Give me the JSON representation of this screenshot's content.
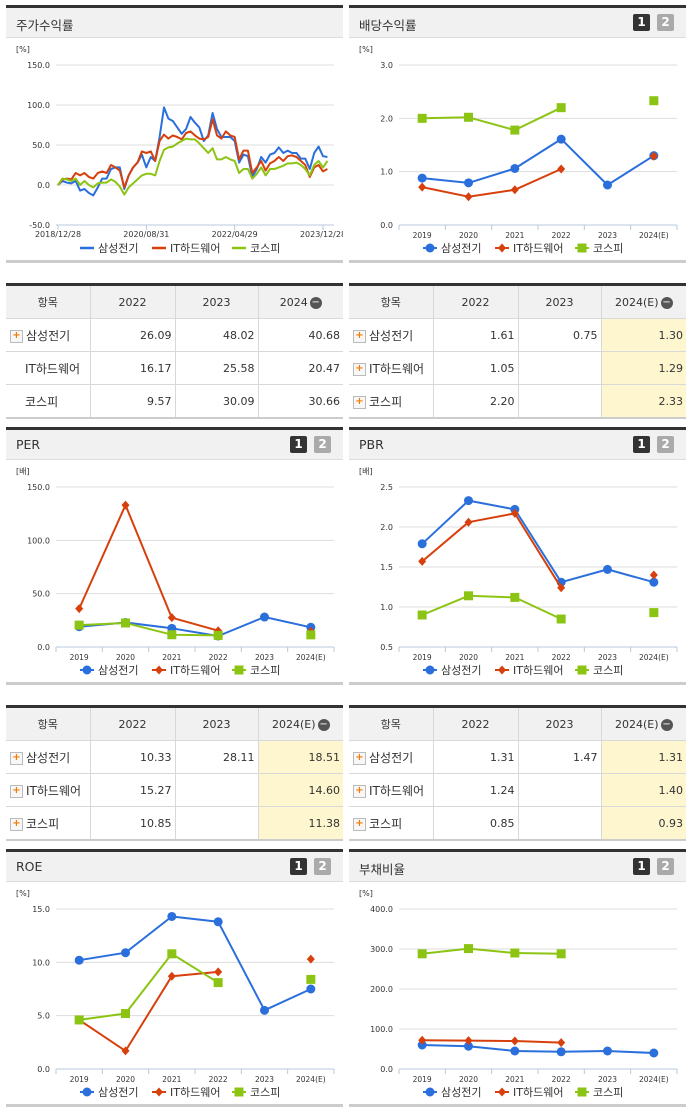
{
  "colors": {
    "samsung": "#2a6fdb",
    "it": "#d7400c",
    "kospi": "#8cc414"
  },
  "legend": [
    "삼성전기",
    "IT하드웨어",
    "코스피"
  ],
  "pager": [
    "1",
    "2"
  ],
  "panels": [
    {
      "title": "주가수익률",
      "unit": "[%]",
      "pager": false,
      "chart_data": {
        "type": "line",
        "time": true,
        "yticks": [
          "150.0",
          "100.0",
          "50.0",
          "0.0",
          "-50.0"
        ],
        "ylim": [
          -50,
          150
        ],
        "xticks": [
          "2018/12/28",
          "2020/08/31",
          "2022/04/29",
          "2023/12/28"
        ],
        "xtick_index": [
          0,
          20,
          40,
          60
        ],
        "series": [
          {
            "name": "삼성전기",
            "values": [
              0,
              5,
              3,
              2,
              5,
              -7,
              -5,
              -10,
              -13,
              -3,
              8,
              8,
              20,
              22,
              22,
              -5,
              12,
              22,
              28,
              38,
              22,
              35,
              30,
              60,
              97,
              83,
              80,
              72,
              64,
              70,
              85,
              78,
              72,
              55,
              62,
              90,
              70,
              60,
              60,
              60,
              55,
              28,
              38,
              36,
              10,
              20,
              35,
              28,
              38,
              40,
              47,
              40,
              43,
              40,
              40,
              33,
              33,
              20,
              40,
              48,
              36,
              35
            ]
          },
          {
            "name": "IT하드웨어",
            "values": [
              0,
              7,
              8,
              7,
              15,
              12,
              15,
              10,
              8,
              15,
              17,
              15,
              25,
              22,
              18,
              -3,
              12,
              22,
              28,
              42,
              40,
              42,
              30,
              55,
              63,
              58,
              62,
              60,
              57,
              65,
              67,
              62,
              58,
              57,
              60,
              82,
              62,
              58,
              67,
              62,
              60,
              32,
              43,
              43,
              15,
              22,
              30,
              18,
              27,
              30,
              35,
              30,
              36,
              37,
              35,
              30,
              25,
              10,
              22,
              25,
              17,
              20
            ]
          },
          {
            "name": "코스피",
            "values": [
              0,
              8,
              7,
              5,
              8,
              0,
              5,
              0,
              -3,
              2,
              3,
              3,
              7,
              4,
              -2,
              -12,
              -3,
              2,
              7,
              12,
              14,
              14,
              12,
              30,
              44,
              47,
              48,
              52,
              55,
              58,
              57,
              57,
              52,
              46,
              40,
              46,
              32,
              32,
              35,
              32,
              30,
              15,
              20,
              20,
              8,
              14,
              22,
              12,
              20,
              20,
              22,
              24,
              27,
              27,
              28,
              25,
              20,
              12,
              25,
              30,
              22,
              30
            ]
          }
        ]
      }
    },
    {
      "title": "배당수익률",
      "unit": "[%]",
      "pager": true,
      "chart_data": {
        "type": "line",
        "categories": [
          "2019",
          "2020",
          "2021",
          "2022",
          "2023",
          "2024(E)"
        ],
        "yticks": [
          "3.0",
          "2.0",
          "1.0",
          "0.0"
        ],
        "ylim": [
          0,
          3
        ],
        "series": [
          {
            "name": "삼성전기",
            "values": [
              0.88,
              0.79,
              1.06,
              1.61,
              0.75,
              1.3
            ]
          },
          {
            "name": "IT하드웨어",
            "values": [
              0.71,
              0.53,
              0.66,
              1.05,
              null,
              1.29
            ]
          },
          {
            "name": "코스피",
            "values": [
              2.0,
              2.02,
              1.78,
              2.2,
              null,
              2.33
            ]
          }
        ]
      }
    },
    {
      "title": "PER",
      "unit": "[배]",
      "pager": true,
      "chart_data": {
        "type": "line",
        "categories": [
          "2019",
          "2020",
          "2021",
          "2022",
          "2023",
          "2024(E)"
        ],
        "yticks": [
          "150.0",
          "100.0",
          "50.0",
          "0.0"
        ],
        "ylim": [
          0,
          150
        ],
        "series": [
          {
            "name": "삼성전기",
            "values": [
              19,
              23,
              17.5,
              10.33,
              28.11,
              18.51
            ]
          },
          {
            "name": "IT하드웨어",
            "values": [
              36,
              133,
              27.5,
              15.27,
              null,
              14.6
            ]
          },
          {
            "name": "코스피",
            "values": [
              20.5,
              22.5,
              11.5,
              10.85,
              null,
              11.38
            ]
          }
        ]
      }
    },
    {
      "title": "PBR",
      "unit": "[배]",
      "pager": true,
      "chart_data": {
        "type": "line",
        "categories": [
          "2019",
          "2020",
          "2021",
          "2022",
          "2023",
          "2024(E)"
        ],
        "yticks": [
          "2.5",
          "2.0",
          "1.5",
          "1.0",
          "0.5"
        ],
        "ylim": [
          0.5,
          2.5
        ],
        "series": [
          {
            "name": "삼성전기",
            "values": [
              1.79,
              2.33,
              2.22,
              1.31,
              1.47,
              1.31
            ]
          },
          {
            "name": "IT하드웨어",
            "values": [
              1.57,
              2.06,
              2.17,
              1.24,
              null,
              1.4
            ]
          },
          {
            "name": "코스피",
            "values": [
              0.9,
              1.14,
              1.12,
              0.85,
              null,
              0.93
            ]
          }
        ]
      }
    },
    {
      "title": "ROE",
      "unit": "[%]",
      "pager": true,
      "chart_data": {
        "type": "line",
        "categories": [
          "2019",
          "2020",
          "2021",
          "2022",
          "2023",
          "2024(E)"
        ],
        "yticks": [
          "15.0",
          "10.0",
          "5.0",
          "0.0"
        ],
        "ylim": [
          0,
          15
        ],
        "series": [
          {
            "name": "삼성전기",
            "values": [
              10.2,
              10.9,
              14.3,
              13.8,
              5.5,
              7.5
            ]
          },
          {
            "name": "IT하드웨어",
            "values": [
              4.6,
              1.7,
              8.7,
              9.1,
              null,
              10.3
            ]
          },
          {
            "name": "코스피",
            "values": [
              4.6,
              5.2,
              10.8,
              8.1,
              null,
              8.4
            ]
          }
        ]
      }
    },
    {
      "title": "부채비율",
      "unit": "[%]",
      "pager": true,
      "chart_data": {
        "type": "line",
        "categories": [
          "2019",
          "2020",
          "2021",
          "2022",
          "2023",
          "2024(E)"
        ],
        "yticks": [
          "400.0",
          "300.0",
          "200.0",
          "100.0",
          "0.0"
        ],
        "ylim": [
          0,
          400
        ],
        "series": [
          {
            "name": "삼성전기",
            "values": [
              60,
              57,
              45,
              43,
              45,
              40
            ]
          },
          {
            "name": "IT하드웨어",
            "values": [
              72,
              71,
              70,
              66,
              null,
              null
            ]
          },
          {
            "name": "코스피",
            "values": [
              288,
              301,
              290,
              288,
              null,
              null
            ]
          }
        ]
      }
    }
  ],
  "tables": [
    {
      "headers": [
        "항목",
        "2022",
        "2023",
        "2024"
      ],
      "highlight": false,
      "rows": [
        {
          "name": "삼성전기",
          "plus": true,
          "values": [
            "26.09",
            "48.02",
            "40.68"
          ]
        },
        {
          "name": "IT하드웨어",
          "plus": false,
          "values": [
            "16.17",
            "25.58",
            "20.47"
          ]
        },
        {
          "name": "코스피",
          "plus": false,
          "values": [
            "9.57",
            "30.09",
            "30.66"
          ]
        }
      ]
    },
    {
      "headers": [
        "항목",
        "2022",
        "2023",
        "2024(E)"
      ],
      "highlight": true,
      "rows": [
        {
          "name": "삼성전기",
          "plus": true,
          "values": [
            "1.61",
            "0.75",
            "1.30"
          ]
        },
        {
          "name": "IT하드웨어",
          "plus": true,
          "values": [
            "1.05",
            "",
            "1.29"
          ]
        },
        {
          "name": "코스피",
          "plus": true,
          "values": [
            "2.20",
            "",
            "2.33"
          ]
        }
      ]
    },
    {
      "headers": [
        "항목",
        "2022",
        "2023",
        "2024(E)"
      ],
      "highlight": true,
      "rows": [
        {
          "name": "삼성전기",
          "plus": true,
          "values": [
            "10.33",
            "28.11",
            "18.51"
          ]
        },
        {
          "name": "IT하드웨어",
          "plus": true,
          "values": [
            "15.27",
            "",
            "14.60"
          ]
        },
        {
          "name": "코스피",
          "plus": true,
          "values": [
            "10.85",
            "",
            "11.38"
          ]
        }
      ]
    },
    {
      "headers": [
        "항목",
        "2022",
        "2023",
        "2024(E)"
      ],
      "highlight": true,
      "rows": [
        {
          "name": "삼성전기",
          "plus": true,
          "values": [
            "1.31",
            "1.47",
            "1.31"
          ]
        },
        {
          "name": "IT하드웨어",
          "plus": true,
          "values": [
            "1.24",
            "",
            "1.40"
          ]
        },
        {
          "name": "코스피",
          "plus": true,
          "values": [
            "0.85",
            "",
            "0.93"
          ]
        }
      ]
    }
  ]
}
